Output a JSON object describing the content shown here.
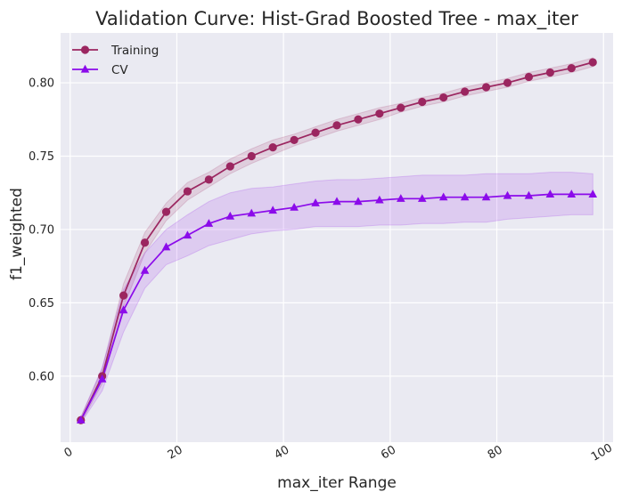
{
  "chart_data": {
    "type": "line",
    "title": "Validation Curve: Hist-Grad Boosted Tree - max_iter",
    "xlabel": "max_iter Range",
    "ylabel": "f1_weighted",
    "xlim": [
      -1.8,
      101.8
    ],
    "ylim": [
      0.555,
      0.834
    ],
    "xticks": [
      0,
      20,
      40,
      60,
      80,
      100
    ],
    "xtick_labels": [
      "0",
      "20",
      "40",
      "60",
      "80",
      "100"
    ],
    "yticks": [
      0.6,
      0.65,
      0.7,
      0.75,
      0.8
    ],
    "ytick_labels": [
      "0.60",
      "0.65",
      "0.70",
      "0.75",
      "0.80"
    ],
    "grid": true,
    "legend_position": "top-left",
    "x": [
      2,
      6,
      10,
      14,
      18,
      22,
      26,
      30,
      34,
      38,
      42,
      46,
      50,
      54,
      58,
      62,
      66,
      70,
      74,
      78,
      82,
      86,
      90,
      94,
      98
    ],
    "series": [
      {
        "name": "Training",
        "color": "#9b2660",
        "marker": "circle",
        "values": [
          0.57,
          0.6,
          0.655,
          0.691,
          0.712,
          0.726,
          0.734,
          0.743,
          0.75,
          0.756,
          0.761,
          0.766,
          0.771,
          0.775,
          0.779,
          0.783,
          0.787,
          0.79,
          0.794,
          0.797,
          0.8,
          0.804,
          0.807,
          0.81,
          0.814
        ],
        "band_low": [
          0.568,
          0.595,
          0.647,
          0.684,
          0.706,
          0.72,
          0.729,
          0.738,
          0.745,
          0.751,
          0.757,
          0.762,
          0.767,
          0.771,
          0.775,
          0.78,
          0.784,
          0.787,
          0.791,
          0.794,
          0.797,
          0.801,
          0.804,
          0.807,
          0.811
        ],
        "band_high": [
          0.572,
          0.605,
          0.663,
          0.698,
          0.718,
          0.732,
          0.739,
          0.748,
          0.755,
          0.761,
          0.765,
          0.77,
          0.775,
          0.779,
          0.783,
          0.786,
          0.79,
          0.793,
          0.797,
          0.8,
          0.803,
          0.807,
          0.81,
          0.813,
          0.817
        ]
      },
      {
        "name": "CV",
        "color": "#8b0bea",
        "marker": "triangle",
        "values": [
          0.57,
          0.598,
          0.645,
          0.672,
          0.688,
          0.696,
          0.704,
          0.709,
          0.711,
          0.713,
          0.715,
          0.718,
          0.719,
          0.719,
          0.72,
          0.721,
          0.721,
          0.722,
          0.722,
          0.722,
          0.723,
          0.723,
          0.724,
          0.724,
          0.724
        ],
        "band_low": [
          0.568,
          0.59,
          0.63,
          0.66,
          0.676,
          0.682,
          0.689,
          0.693,
          0.697,
          0.699,
          0.7,
          0.702,
          0.702,
          0.702,
          0.703,
          0.703,
          0.704,
          0.704,
          0.705,
          0.705,
          0.707,
          0.708,
          0.709,
          0.71,
          0.71
        ],
        "band_high": [
          0.572,
          0.606,
          0.659,
          0.684,
          0.7,
          0.71,
          0.719,
          0.725,
          0.728,
          0.729,
          0.731,
          0.733,
          0.734,
          0.734,
          0.735,
          0.736,
          0.737,
          0.737,
          0.737,
          0.738,
          0.738,
          0.738,
          0.739,
          0.739,
          0.738
        ]
      }
    ]
  }
}
